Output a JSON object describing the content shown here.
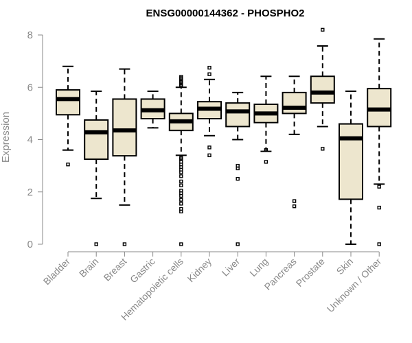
{
  "chart_data": {
    "type": "boxplot",
    "title": "ENSG00000144362 - PHOSPHO2",
    "xlabel": "",
    "ylabel": "Expression",
    "ylim": [
      0,
      8.3
    ],
    "yticks": [
      0,
      2,
      4,
      6,
      8
    ],
    "box_fill": "#ede6ce",
    "categories": [
      "Bladder",
      "Brain",
      "Breast",
      "Gastric",
      "Hematopoietic cells",
      "Kidney",
      "Liver",
      "Lung",
      "Pancreas",
      "Prostate",
      "Skin",
      "Unknown / Other"
    ],
    "boxes": [
      {
        "category": "Bladder",
        "whisker_low": 3.6,
        "q1": 4.95,
        "median": 5.55,
        "q3": 5.9,
        "whisker_high": 6.8,
        "outliers": [
          3.05
        ]
      },
      {
        "category": "Brain",
        "whisker_low": 1.75,
        "q1": 3.25,
        "median": 4.28,
        "q3": 4.75,
        "whisker_high": 5.85,
        "outliers": [
          0.0
        ]
      },
      {
        "category": "Breast",
        "whisker_low": 1.5,
        "q1": 3.38,
        "median": 4.35,
        "q3": 5.55,
        "whisker_high": 6.7,
        "outliers": [
          0.0
        ]
      },
      {
        "category": "Gastric",
        "whisker_low": 4.45,
        "q1": 4.8,
        "median": 5.12,
        "q3": 5.55,
        "whisker_high": 5.85,
        "outliers": []
      },
      {
        "category": "Hematopoietic cells",
        "whisker_low": 3.4,
        "q1": 4.35,
        "median": 4.7,
        "q3": 5.0,
        "whisker_high": 6.0,
        "outliers": [
          6.05,
          6.1,
          6.15,
          6.2,
          6.25,
          6.3,
          6.35,
          6.4,
          3.3,
          3.25,
          3.15,
          3.05,
          2.95,
          2.85,
          2.75,
          2.6,
          2.4,
          2.25,
          2.05,
          1.95,
          1.85,
          1.7,
          1.55,
          1.35,
          1.25,
          0.0
        ]
      },
      {
        "category": "Kidney",
        "whisker_low": 4.15,
        "q1": 4.8,
        "median": 5.18,
        "q3": 5.45,
        "whisker_high": 6.3,
        "outliers": [
          6.5,
          6.75,
          3.7,
          3.4
        ]
      },
      {
        "category": "Liver",
        "whisker_low": 4.0,
        "q1": 4.5,
        "median": 5.08,
        "q3": 5.4,
        "whisker_high": 5.8,
        "outliers": [
          3.0,
          2.9,
          2.5,
          0.0
        ]
      },
      {
        "category": "Lung",
        "whisker_low": 3.55,
        "q1": 4.65,
        "median": 5.0,
        "q3": 5.35,
        "whisker_high": 6.42,
        "outliers": [
          3.6,
          3.15
        ]
      },
      {
        "category": "Pancreas",
        "whisker_low": 4.2,
        "q1": 5.0,
        "median": 5.22,
        "q3": 5.8,
        "whisker_high": 6.42,
        "outliers": [
          1.65,
          1.45
        ]
      },
      {
        "category": "Prostate",
        "whisker_low": 4.5,
        "q1": 5.4,
        "median": 5.8,
        "q3": 6.42,
        "whisker_high": 7.58,
        "outliers": [
          8.2,
          3.65
        ]
      },
      {
        "category": "Skin",
        "whisker_low": 0.0,
        "q1": 1.72,
        "median": 4.05,
        "q3": 4.6,
        "whisker_high": 5.85,
        "outliers": []
      },
      {
        "category": "Unknown / Other",
        "whisker_low": 2.3,
        "q1": 4.5,
        "median": 5.15,
        "q3": 5.95,
        "whisker_high": 7.85,
        "outliers": [
          2.2,
          1.4,
          0.0
        ]
      }
    ]
  }
}
